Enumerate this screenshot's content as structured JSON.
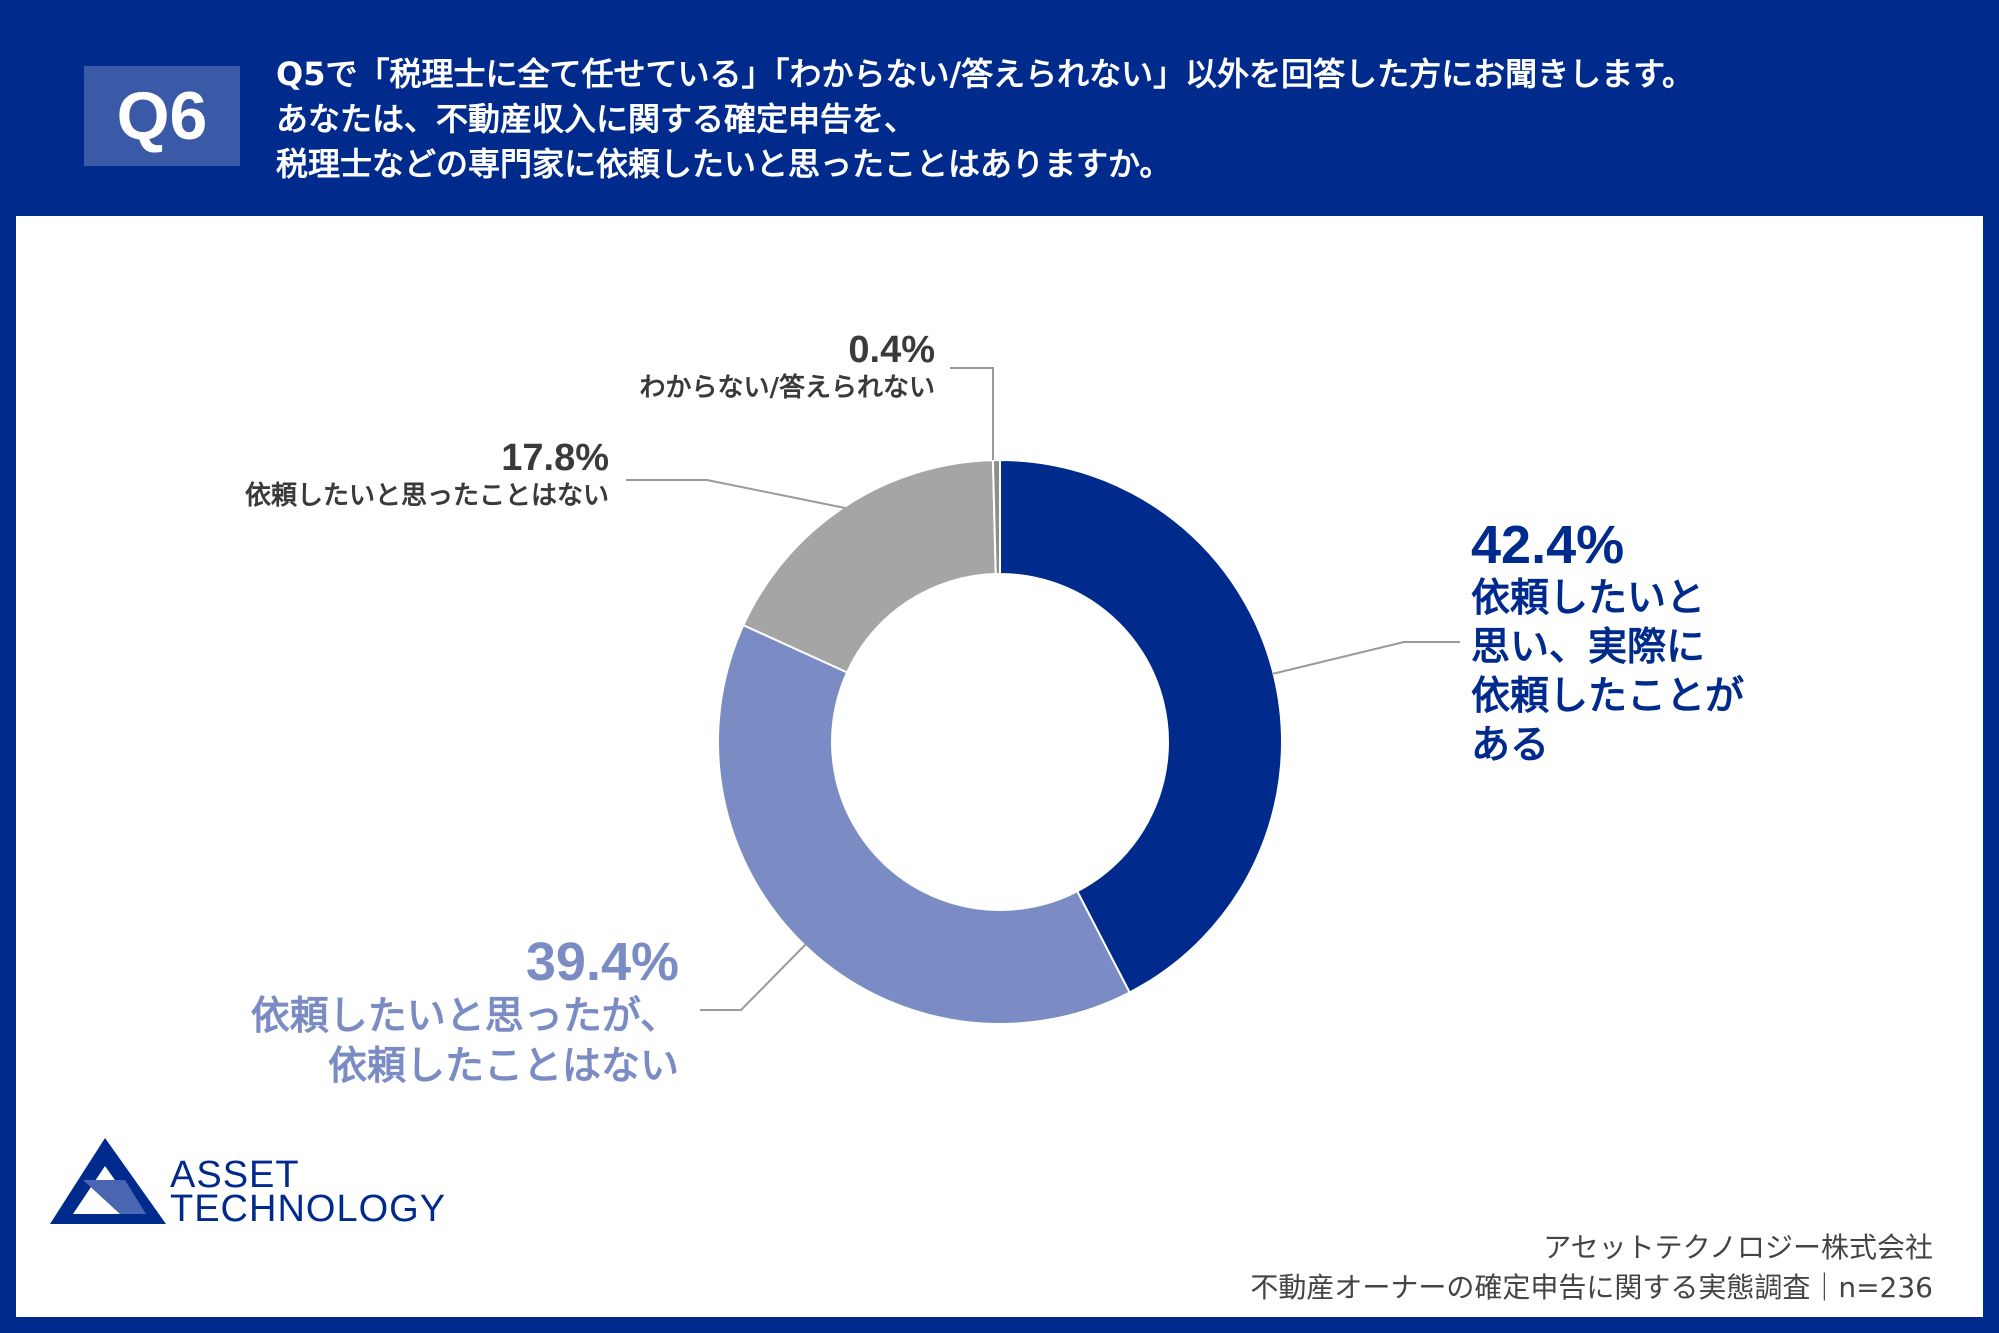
{
  "header": {
    "badge": "Q6",
    "question_lines": [
      "Q5で「税理士に全て任せている」「わからない/答えられない」以外を回答した方にお聞きします。",
      "あなたは、不動産収入に関する確定申告を、",
      "税理士などの専門家に依頼したいと思ったことはありますか。"
    ]
  },
  "chart_data": {
    "type": "pie",
    "style": "donut",
    "title": "",
    "slices": [
      {
        "label": "依頼したいと思い、実際に依頼したことがある",
        "label_lines": [
          "依頼したいと",
          "思い、実際に",
          "依頼したことが",
          "ある"
        ],
        "value": 42.4,
        "value_text": "42.4%",
        "color": "#002a8b"
      },
      {
        "label": "依頼したいと思ったが、依頼したことはない",
        "label_lines": [
          "依頼したいと思ったが、",
          "依頼したことはない"
        ],
        "value": 39.4,
        "value_text": "39.4%",
        "color": "#7b8cc4"
      },
      {
        "label": "依頼したいと思ったことはない",
        "label_lines": [
          "依頼したいと思ったことはない"
        ],
        "value": 17.8,
        "value_text": "17.8%",
        "color": "#a5a5a5"
      },
      {
        "label": "わからない/答えられない",
        "label_lines": [
          "わからない/答えられない"
        ],
        "value": 0.4,
        "value_text": "0.4%",
        "color": "#8e8e8e"
      }
    ]
  },
  "logo": {
    "line1": "ASSET",
    "line2": "TECHNOLOGY",
    "color": "#002a8b"
  },
  "footer": {
    "company": "アセットテクノロジー株式会社",
    "survey": "不動産オーナーの確定申告に関する実態調査｜n=236"
  }
}
